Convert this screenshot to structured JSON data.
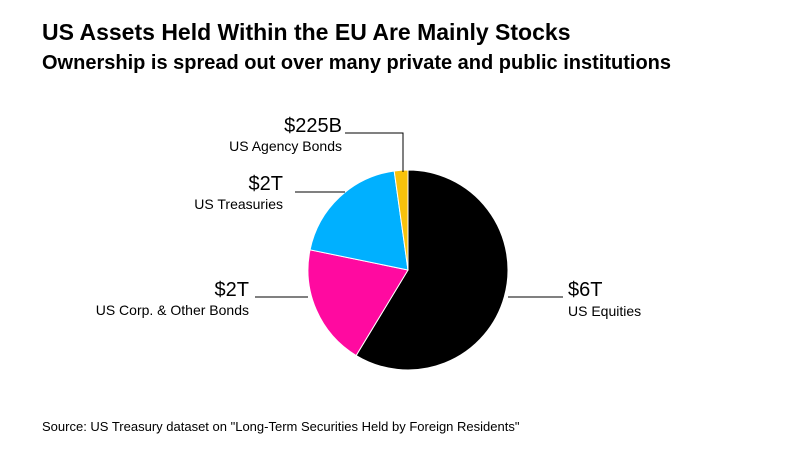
{
  "title": "US Assets Held Within the EU Are Mainly Stocks",
  "subtitle": "Ownership is spread out over many private and public institutions",
  "source": "Source: US Treasury dataset on \"Long-Term Securities Held by Foreign Residents\"",
  "chart_data": {
    "type": "pie",
    "title": "US Assets Held Within the EU Are Mainly Stocks",
    "slices": [
      {
        "name": "US Equities",
        "label": "$6T",
        "value": 58.5,
        "color": "#000000"
      },
      {
        "name": "US Corp. & Other Bonds",
        "label": "$2T",
        "value": 19.5,
        "color": "#ff0aa0"
      },
      {
        "name": "US Treasuries",
        "label": "$2T",
        "value": 19.5,
        "color": "#00b0ff"
      },
      {
        "name": "US Agency Bonds",
        "label": "$225B",
        "value": 2.2,
        "color": "#f8c20c"
      }
    ]
  }
}
